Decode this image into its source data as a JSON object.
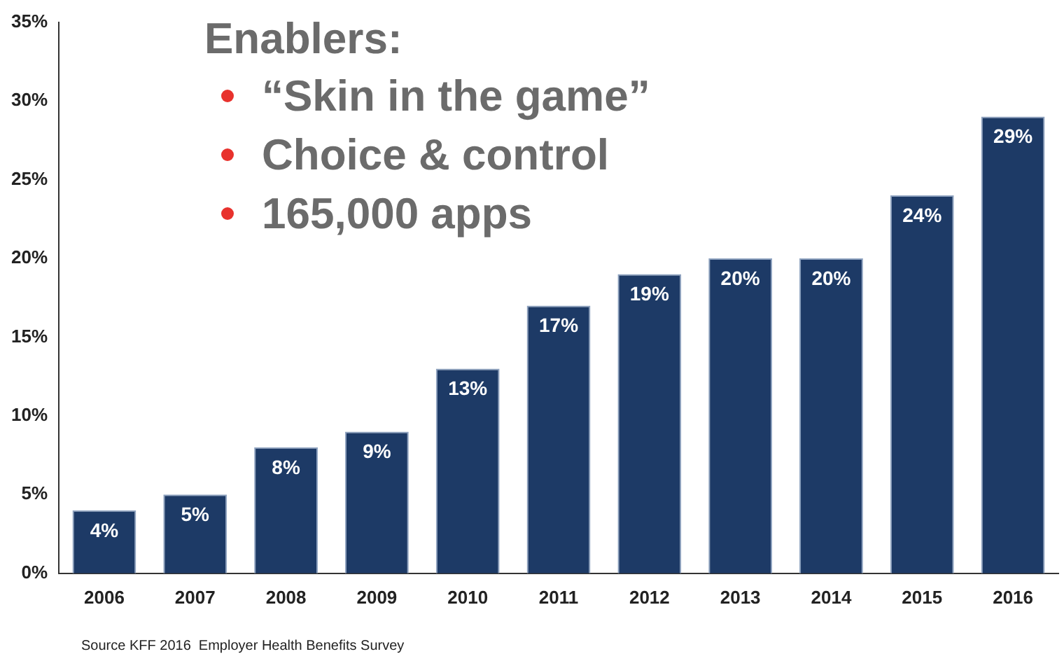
{
  "chart_data": {
    "type": "bar",
    "categories": [
      "2006",
      "2007",
      "2008",
      "2009",
      "2010",
      "2011",
      "2012",
      "2013",
      "2014",
      "2015",
      "2016"
    ],
    "values": [
      4,
      5,
      8,
      9,
      13,
      17,
      19,
      20,
      20,
      24,
      29
    ],
    "value_labels": [
      "4%",
      "5%",
      "8%",
      "9%",
      "13%",
      "17%",
      "19%",
      "20%",
      "20%",
      "24%",
      "29%"
    ],
    "color": "#1d3a66",
    "ylim": [
      0,
      35
    ],
    "yticks": [
      {
        "value": 0,
        "label": "0%"
      },
      {
        "value": 5,
        "label": "5%"
      },
      {
        "value": 10,
        "label": "10%"
      },
      {
        "value": 15,
        "label": "15%"
      },
      {
        "value": 20,
        "label": "20%"
      },
      {
        "value": 25,
        "label": "25%"
      },
      {
        "value": 30,
        "label": "30%"
      },
      {
        "value": 35,
        "label": "35%"
      }
    ],
    "grid": false,
    "legend": false,
    "annotations": [
      "Enablers:",
      "“Skin in the game”",
      "Choice & control",
      "165,000 apps",
      "Source KFF 2016  Employer Health Benefits Survey"
    ]
  }
}
